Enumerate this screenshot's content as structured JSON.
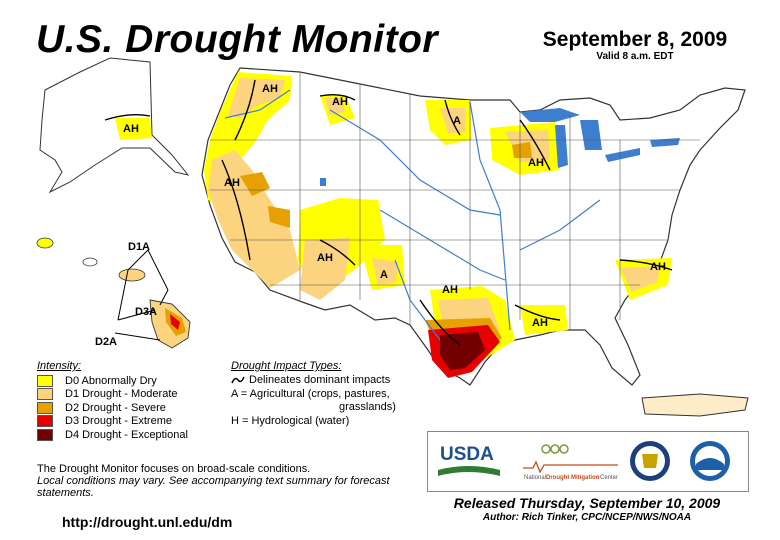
{
  "title": "U.S. Drought Monitor",
  "date": "September 8, 2009",
  "valid": "Valid 8 a.m. EDT",
  "legend": {
    "heading": "Intensity:",
    "items": [
      {
        "label": "D0 Abnormally Dry",
        "color": "#ffff00"
      },
      {
        "label": "D1 Drought - Moderate",
        "color": "#fcd37f"
      },
      {
        "label": "D2 Drought - Severe",
        "color": "#e6a000"
      },
      {
        "label": "D3 Drought - Extreme",
        "color": "#e60000"
      },
      {
        "label": "D4 Drought - Exceptional",
        "color": "#730000"
      }
    ]
  },
  "impact": {
    "heading": "Drought Impact Types:",
    "delineates": "Delineates dominant impacts",
    "agricultural": "A = Agricultural (crops, pastures,",
    "agricultural_cont": "grasslands)",
    "hydrological": "H = Hydrological (water)"
  },
  "disclaimer": {
    "line1": "The Drought Monitor focuses on broad-scale conditions.",
    "line2": "Local conditions may vary. See accompanying text summary for forecast statements."
  },
  "url": "http://drought.unl.edu/dm",
  "logos": {
    "usda": "USDA",
    "ndmc_prefix": "National",
    "ndmc_name": "Drought Mitigation",
    "ndmc_suffix": "Center"
  },
  "released": "Released Thursday, September 10, 2009",
  "author": "Author: Rich Tinker, CPC/NCEP/NWS/NOAA",
  "map_labels": {
    "ah": "AH",
    "a": "A",
    "d1a": "D1A",
    "d2a": "D2A",
    "d3a": "D3A"
  },
  "colors": {
    "water": "#3d7ecf",
    "land": "#ffffff",
    "border": "#333333"
  }
}
